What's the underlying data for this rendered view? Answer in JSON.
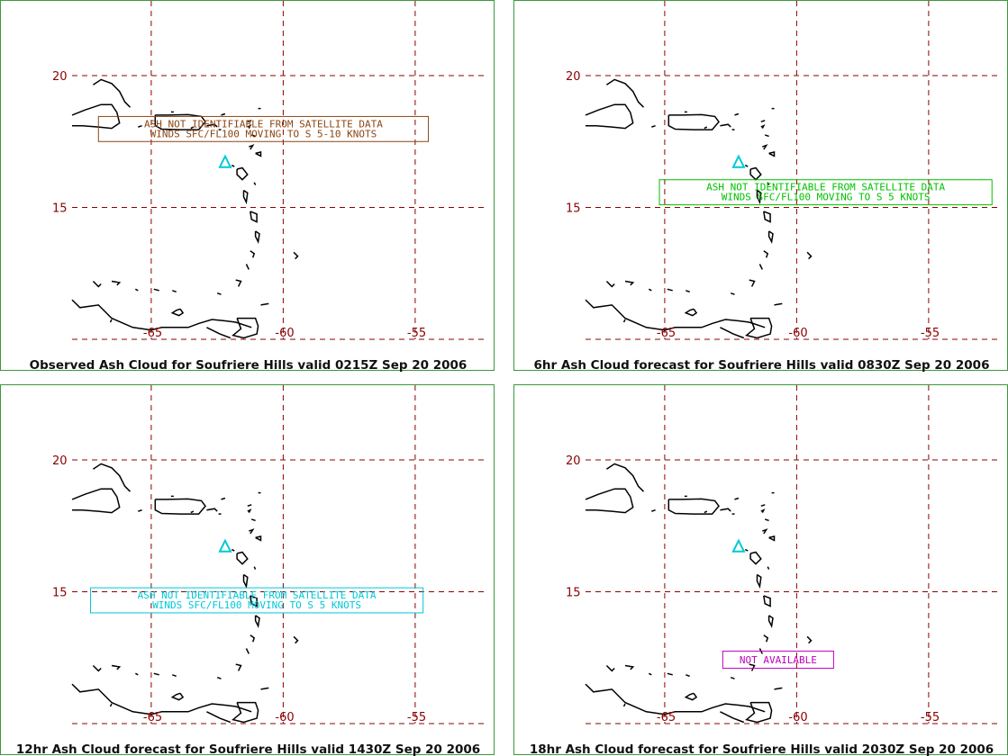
{
  "colors": {
    "panel_border": "#3a9a3a",
    "grid": "#8b0000",
    "coast": "#000000",
    "volcano": "#00c8d8"
  },
  "grid_labels": {
    "lat": [
      "20",
      "15"
    ],
    "lon": [
      "-65",
      "-60",
      "-55"
    ]
  },
  "map_extent": {
    "lon_min": -68,
    "lon_max": -54.5,
    "lat_min": 10.0,
    "lat_max": 22.0
  },
  "volcano": {
    "name": "Soufriere Hills",
    "lon": -62.2,
    "lat": 16.7,
    "icon": "triangle-icon"
  },
  "panels": [
    {
      "id": "observed",
      "caption": "Observed Ash Cloud for Soufriere  Hills valid 0215Z Sep 20 2006",
      "message_lines": [
        "ASH NOT IDENTIFIABLE FROM SATELLITE DATA",
        "WINDS SFC/FL100 MOVING TO S 5-10 KNOTS"
      ],
      "message_color": "#8b4513",
      "message_box_lonlat": [
        -67.0,
        -54.5,
        18.45,
        17.5
      ]
    },
    {
      "id": "forecast-6hr",
      "caption": "6hr Ash Cloud forecast for Soufriere  Hills valid 0830Z Sep 20 2006",
      "message_lines": [
        "ASH NOT IDENTIFIABLE FROM SATELLITE DATA",
        "WINDS SFC/FL100 MOVING TO S 5 KNOTS"
      ],
      "message_color": "#00c000",
      "message_box_lonlat": [
        -65.2,
        -52.6,
        16.05,
        15.1
      ]
    },
    {
      "id": "forecast-12hr",
      "caption": "12hr Ash Cloud forecast for Soufriere  Hills valid 1430Z Sep 20 2006",
      "message_lines": [
        "ASH NOT IDENTIFIABLE FROM SATELLITE DATA",
        "WINDS SFC/FL100 MOVING TO S 5 KNOTS"
      ],
      "message_color": "#00c8d8",
      "message_box_lonlat": [
        -67.3,
        -54.7,
        15.15,
        14.2
      ]
    },
    {
      "id": "forecast-18hr",
      "caption": "18hr Ash Cloud forecast for Soufriere  Hills valid 2030Z Sep 20 2006",
      "message_lines": [
        "NOT AVAILABLE"
      ],
      "message_color": "#c000c0",
      "message_box_lonlat": [
        -62.8,
        -58.6,
        12.75,
        12.1
      ]
    }
  ]
}
